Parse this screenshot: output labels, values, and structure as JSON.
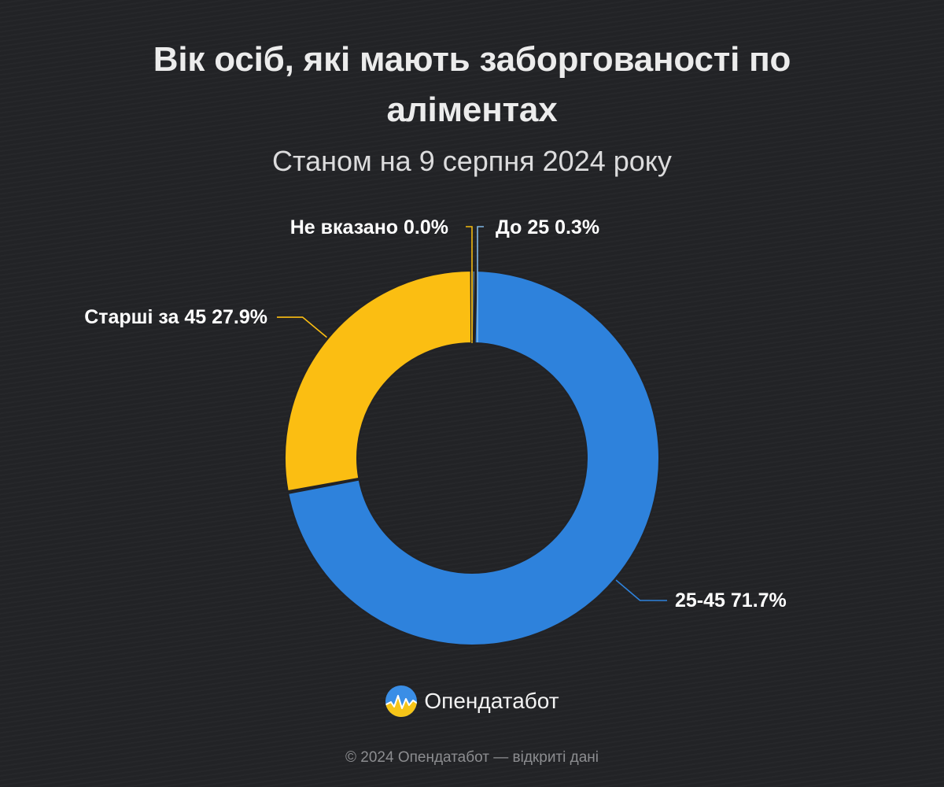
{
  "header": {
    "title": "Вік осіб, які мають заборгованості по аліментах",
    "subtitle": "Станом на 9 серпня 2024 року"
  },
  "chart_data": {
    "type": "pie",
    "variant": "donut",
    "title": "Вік осіб, які мають заборгованості по аліментах",
    "subtitle": "Станом на 9 серпня 2024 року",
    "slices": [
      {
        "label": "До 25",
        "value": 0.3,
        "display": "До 25 0.3%",
        "color": "#7fb6e3"
      },
      {
        "label": "25-45",
        "value": 71.7,
        "display": "25-45 71.7%",
        "color": "#2e82dc"
      },
      {
        "label": "Старші за 45",
        "value": 27.9,
        "display": "Старші за 45 27.9%",
        "color": "#fbbe12"
      },
      {
        "label": "Не вказано",
        "value": 0.0,
        "display": "Не вказано 0.0%",
        "color": "#f2b90f"
      }
    ],
    "unit": "%",
    "legend": "none",
    "labels": "outside-with-leader-lines"
  },
  "brand": {
    "name": "Опендатабот",
    "logo_icon": "opendatabot-logo-icon"
  },
  "footer": {
    "text": "© 2024 Опендатабот — відкриті дані"
  }
}
